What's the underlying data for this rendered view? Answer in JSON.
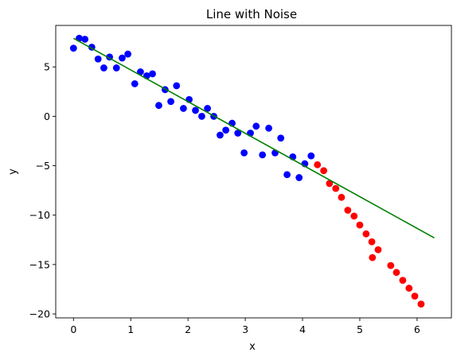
{
  "chart_data": {
    "type": "scatter",
    "title": "Line with Noise",
    "xlabel": "x",
    "ylabel": "y",
    "xlim": [
      -0.31,
      6.6
    ],
    "ylim": [
      -20.4,
      9.2
    ],
    "xticks": [
      0,
      1,
      2,
      3,
      4,
      5,
      6
    ],
    "yticks": [
      5,
      0,
      -5,
      -10,
      -15,
      -20
    ],
    "grid": false,
    "series": [
      {
        "kind": "points",
        "color": "#0000ff",
        "points": [
          [
            0.0,
            6.9
          ],
          [
            0.1,
            7.9
          ],
          [
            0.2,
            7.8
          ],
          [
            0.32,
            7.0
          ],
          [
            0.43,
            5.8
          ],
          [
            0.53,
            4.9
          ],
          [
            0.63,
            6.0
          ],
          [
            0.75,
            4.9
          ],
          [
            0.85,
            5.9
          ],
          [
            0.95,
            6.3
          ],
          [
            1.07,
            3.3
          ],
          [
            1.17,
            4.5
          ],
          [
            1.28,
            4.1
          ],
          [
            1.38,
            4.3
          ],
          [
            1.49,
            1.1
          ],
          [
            1.6,
            2.7
          ],
          [
            1.7,
            1.5
          ],
          [
            1.8,
            3.1
          ],
          [
            1.92,
            0.8
          ],
          [
            2.02,
            1.7
          ],
          [
            2.13,
            0.6
          ],
          [
            2.24,
            0.0
          ],
          [
            2.34,
            0.8
          ],
          [
            2.45,
            0.0
          ],
          [
            2.56,
            -1.9
          ],
          [
            2.66,
            -1.4
          ],
          [
            2.77,
            -0.7
          ],
          [
            2.87,
            -1.7
          ],
          [
            2.98,
            -3.7
          ],
          [
            3.09,
            -1.7
          ],
          [
            3.19,
            -1.0
          ],
          [
            3.3,
            -3.9
          ],
          [
            3.41,
            -1.2
          ],
          [
            3.52,
            -3.7
          ],
          [
            3.62,
            -2.2
          ],
          [
            3.73,
            -5.9
          ],
          [
            3.83,
            -4.1
          ],
          [
            3.94,
            -6.2
          ],
          [
            4.04,
            -4.8
          ],
          [
            4.15,
            -4.0
          ]
        ]
      },
      {
        "kind": "points",
        "color": "#ff0000",
        "points": [
          [
            4.26,
            -4.9
          ],
          [
            4.37,
            -5.5
          ],
          [
            4.47,
            -6.8
          ],
          [
            4.58,
            -7.3
          ],
          [
            4.68,
            -8.2
          ],
          [
            4.79,
            -9.5
          ],
          [
            4.9,
            -10.1
          ],
          [
            5.0,
            -11.0
          ],
          [
            5.11,
            -11.9
          ],
          [
            5.21,
            -12.7
          ],
          [
            5.22,
            -14.3
          ],
          [
            5.32,
            -13.5
          ],
          [
            5.54,
            -15.1
          ],
          [
            5.64,
            -15.8
          ],
          [
            5.75,
            -16.6
          ],
          [
            5.86,
            -17.4
          ],
          [
            5.96,
            -18.2
          ],
          [
            6.07,
            -19.0
          ]
        ]
      },
      {
        "kind": "line",
        "color": "#008000",
        "points": [
          [
            0.0,
            7.9
          ],
          [
            6.3,
            -12.3
          ]
        ]
      }
    ]
  }
}
